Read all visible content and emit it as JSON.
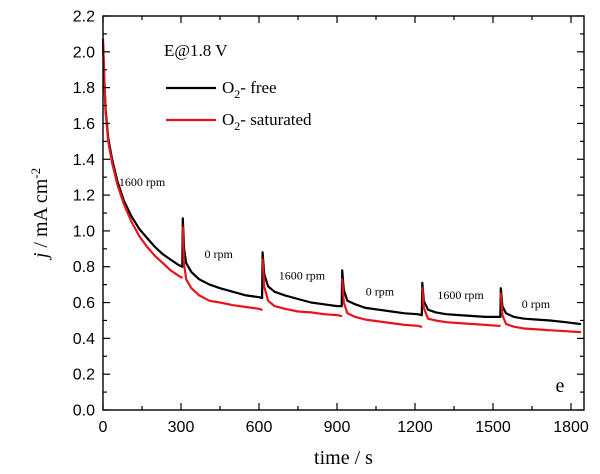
{
  "chart_data": {
    "type": "line",
    "title": "",
    "xlabel": "time / s",
    "ylabel_italic": "j",
    "ylabel_rest": " / mA cm",
    "ylabel_sup": "-2",
    "xlim": [
      0,
      1850
    ],
    "ylim": [
      0.0,
      2.2
    ],
    "xticks": [
      0,
      300,
      600,
      900,
      1200,
      1500,
      1800
    ],
    "yticks": [
      0.0,
      0.2,
      0.4,
      0.6,
      0.8,
      1.0,
      1.2,
      1.4,
      1.6,
      1.8,
      2.0,
      2.2
    ],
    "ytick_labels": [
      "0.0",
      "0.2",
      "0.4",
      "0.6",
      "0.8",
      "1.0",
      "1.2",
      "1.4",
      "1.6",
      "1.8",
      "2.0",
      "2.2"
    ],
    "legend": {
      "header": "E@1.8 V",
      "placement": "top-left",
      "entries": [
        {
          "prefix": "O",
          "sub": "2",
          "suffix": "- free",
          "color": "#000000"
        },
        {
          "prefix": "O",
          "sub": "2",
          "suffix": "- saturated",
          "color": "#e8141b"
        }
      ]
    },
    "panel_label": "e",
    "annotations": [
      {
        "text": "1600 rpm",
        "x": 150,
        "y": 1.25
      },
      {
        "text": "0 rpm",
        "x": 445,
        "y": 0.85
      },
      {
        "text": "1600 rpm",
        "x": 765,
        "y": 0.73
      },
      {
        "text": "0 rpm",
        "x": 1065,
        "y": 0.64
      },
      {
        "text": "1600 rpm",
        "x": 1375,
        "y": 0.62
      },
      {
        "text": "0 rpm",
        "x": 1665,
        "y": 0.57
      }
    ],
    "series": [
      {
        "name": "O2- free",
        "color": "#000000",
        "segments": [
          [
            [
              0,
              2.05
            ],
            [
              5,
              1.85
            ],
            [
              10,
              1.68
            ],
            [
              20,
              1.52
            ],
            [
              35,
              1.4
            ],
            [
              55,
              1.28
            ],
            [
              80,
              1.17
            ],
            [
              110,
              1.08
            ],
            [
              140,
              1.01
            ],
            [
              170,
              0.96
            ],
            [
              200,
              0.91
            ],
            [
              230,
              0.87
            ],
            [
              260,
              0.84
            ],
            [
              290,
              0.81
            ],
            [
              305,
              0.8
            ]
          ],
          [
            [
              305,
              0.8
            ],
            [
              307,
              1.07
            ],
            [
              312,
              0.9
            ],
            [
              320,
              0.82
            ],
            [
              340,
              0.77
            ],
            [
              370,
              0.73
            ],
            [
              410,
              0.7
            ],
            [
              450,
              0.68
            ],
            [
              500,
              0.66
            ],
            [
              550,
              0.64
            ],
            [
              600,
              0.63
            ],
            [
              612,
              0.625
            ]
          ],
          [
            [
              612,
              0.625
            ],
            [
              614,
              0.88
            ],
            [
              620,
              0.76
            ],
            [
              635,
              0.69
            ],
            [
              660,
              0.66
            ],
            [
              700,
              0.64
            ],
            [
              750,
              0.62
            ],
            [
              800,
              0.6
            ],
            [
              850,
              0.59
            ],
            [
              900,
              0.58
            ],
            [
              918,
              0.58
            ]
          ],
          [
            [
              918,
              0.58
            ],
            [
              920,
              0.78
            ],
            [
              926,
              0.67
            ],
            [
              940,
              0.61
            ],
            [
              970,
              0.59
            ],
            [
              1010,
              0.57
            ],
            [
              1060,
              0.56
            ],
            [
              1110,
              0.55
            ],
            [
              1160,
              0.54
            ],
            [
              1210,
              0.535
            ],
            [
              1226,
              0.53
            ]
          ],
          [
            [
              1226,
              0.53
            ],
            [
              1228,
              0.71
            ],
            [
              1234,
              0.61
            ],
            [
              1250,
              0.56
            ],
            [
              1280,
              0.545
            ],
            [
              1320,
              0.535
            ],
            [
              1370,
              0.53
            ],
            [
              1420,
              0.525
            ],
            [
              1470,
              0.52
            ],
            [
              1520,
              0.52
            ],
            [
              1528,
              0.52
            ]
          ],
          [
            [
              1528,
              0.52
            ],
            [
              1530,
              0.68
            ],
            [
              1536,
              0.58
            ],
            [
              1550,
              0.54
            ],
            [
              1580,
              0.52
            ],
            [
              1620,
              0.51
            ],
            [
              1670,
              0.505
            ],
            [
              1720,
              0.5
            ],
            [
              1780,
              0.49
            ],
            [
              1835,
              0.48
            ]
          ]
        ]
      },
      {
        "name": "O2- saturated",
        "color": "#e8141b",
        "segments": [
          [
            [
              0,
              2.07
            ],
            [
              5,
              1.85
            ],
            [
              10,
              1.66
            ],
            [
              20,
              1.5
            ],
            [
              35,
              1.38
            ],
            [
              55,
              1.26
            ],
            [
              80,
              1.15
            ],
            [
              110,
              1.05
            ],
            [
              140,
              0.97
            ],
            [
              170,
              0.91
            ],
            [
              200,
              0.86
            ],
            [
              230,
              0.82
            ],
            [
              260,
              0.78
            ],
            [
              290,
              0.75
            ],
            [
              303,
              0.74
            ]
          ],
          [
            [
              307,
              1.02
            ],
            [
              311,
              0.82
            ],
            [
              320,
              0.73
            ],
            [
              340,
              0.68
            ],
            [
              370,
              0.64
            ],
            [
              410,
              0.61
            ],
            [
              450,
              0.6
            ],
            [
              500,
              0.585
            ],
            [
              550,
              0.575
            ],
            [
              600,
              0.565
            ],
            [
              610,
              0.56
            ]
          ],
          [
            [
              614,
              0.84
            ],
            [
              620,
              0.69
            ],
            [
              635,
              0.61
            ],
            [
              660,
              0.58
            ],
            [
              700,
              0.565
            ],
            [
              750,
              0.55
            ],
            [
              800,
              0.545
            ],
            [
              850,
              0.535
            ],
            [
              900,
              0.53
            ],
            [
              916,
              0.525
            ]
          ],
          [
            [
              920,
              0.73
            ],
            [
              926,
              0.6
            ],
            [
              940,
              0.54
            ],
            [
              970,
              0.52
            ],
            [
              1010,
              0.505
            ],
            [
              1060,
              0.495
            ],
            [
              1110,
              0.485
            ],
            [
              1160,
              0.475
            ],
            [
              1210,
              0.47
            ],
            [
              1224,
              0.465
            ]
          ],
          [
            [
              1228,
              0.68
            ],
            [
              1234,
              0.57
            ],
            [
              1250,
              0.51
            ],
            [
              1280,
              0.5
            ],
            [
              1320,
              0.49
            ],
            [
              1370,
              0.485
            ],
            [
              1420,
              0.48
            ],
            [
              1470,
              0.475
            ],
            [
              1520,
              0.47
            ],
            [
              1526,
              0.47
            ]
          ],
          [
            [
              1530,
              0.65
            ],
            [
              1536,
              0.53
            ],
            [
              1550,
              0.48
            ],
            [
              1580,
              0.465
            ],
            [
              1620,
              0.455
            ],
            [
              1670,
              0.45
            ],
            [
              1720,
              0.445
            ],
            [
              1780,
              0.44
            ],
            [
              1835,
              0.435
            ]
          ]
        ]
      }
    ]
  }
}
